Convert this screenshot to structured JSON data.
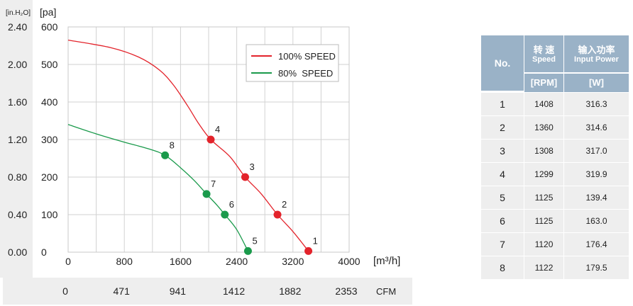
{
  "chart_data": {
    "type": "line",
    "x_unit_label": "[m³/h]",
    "x_ticks": [
      0,
      800,
      1600,
      2400,
      3200,
      4000
    ],
    "x_tick_labels": [
      "0",
      "800",
      "1600",
      "2400",
      "3200",
      "4000"
    ],
    "x2_ticks": [
      "0",
      "471",
      "941",
      "1412",
      "1882",
      "2353"
    ],
    "x2_unit_label": "CFM",
    "y_unit_label": "[pa]",
    "y_ticks": [
      0,
      100,
      200,
      300,
      400,
      500,
      600
    ],
    "y_tick_labels": [
      "0",
      "100",
      "200",
      "300",
      "400",
      "500",
      "600"
    ],
    "y2_unit_label": "[in.H₂O]",
    "y2_ticks": [
      "0.00",
      "0.40",
      "0.80",
      "1.20",
      "1.60",
      "2.00",
      "2.40"
    ],
    "xlim": [
      0,
      4000
    ],
    "ylim": [
      0,
      600
    ],
    "grid": true,
    "legend_position": "top-right",
    "series": [
      {
        "name": "100% SPEED",
        "color": "#e3232b",
        "curve": [
          [
            0,
            565
          ],
          [
            600,
            545
          ],
          [
            1000,
            520
          ],
          [
            1300,
            485
          ],
          [
            1500,
            445
          ],
          [
            1700,
            390
          ],
          [
            1850,
            345
          ],
          [
            2030,
            300
          ],
          [
            2300,
            255
          ],
          [
            2520,
            200
          ],
          [
            2750,
            155
          ],
          [
            2980,
            100
          ],
          [
            3200,
            55
          ],
          [
            3420,
            3
          ]
        ],
        "points": [
          {
            "label": "1",
            "x": 3420,
            "y": 3
          },
          {
            "label": "2",
            "x": 2980,
            "y": 100
          },
          {
            "label": "3",
            "x": 2520,
            "y": 200
          },
          {
            "label": "4",
            "x": 2030,
            "y": 300
          }
        ]
      },
      {
        "name": "80%  SPEED",
        "color": "#1a9a4b",
        "curve": [
          [
            0,
            340
          ],
          [
            400,
            315
          ],
          [
            800,
            293
          ],
          [
            1150,
            275
          ],
          [
            1380,
            258
          ],
          [
            1600,
            225
          ],
          [
            1800,
            190
          ],
          [
            1970,
            155
          ],
          [
            2120,
            125
          ],
          [
            2230,
            100
          ],
          [
            2400,
            60
          ],
          [
            2560,
            3
          ]
        ],
        "points": [
          {
            "label": "5",
            "x": 2560,
            "y": 3
          },
          {
            "label": "6",
            "x": 2230,
            "y": 100
          },
          {
            "label": "7",
            "x": 1970,
            "y": 155
          },
          {
            "label": "8",
            "x": 1380,
            "y": 258
          }
        ]
      }
    ]
  },
  "table": {
    "no_header": "No.",
    "speed_header_cn": "转 速",
    "speed_header_en": "Speed",
    "power_header_cn": "输入功率",
    "power_header_en": "Input Power",
    "speed_unit": "[RPM]",
    "power_unit": "[W]",
    "rows": [
      {
        "no": "1",
        "rpm": "1408",
        "power": "316.3"
      },
      {
        "no": "2",
        "rpm": "1360",
        "power": "314.6"
      },
      {
        "no": "3",
        "rpm": "1308",
        "power": "317.0"
      },
      {
        "no": "4",
        "rpm": "1299",
        "power": "319.9"
      },
      {
        "no": "5",
        "rpm": "1125",
        "power": "139.4"
      },
      {
        "no": "6",
        "rpm": "1125",
        "power": "163.0"
      },
      {
        "no": "7",
        "rpm": "1120",
        "power": "176.4"
      },
      {
        "no": "8",
        "rpm": "1122",
        "power": "179.5"
      }
    ]
  }
}
